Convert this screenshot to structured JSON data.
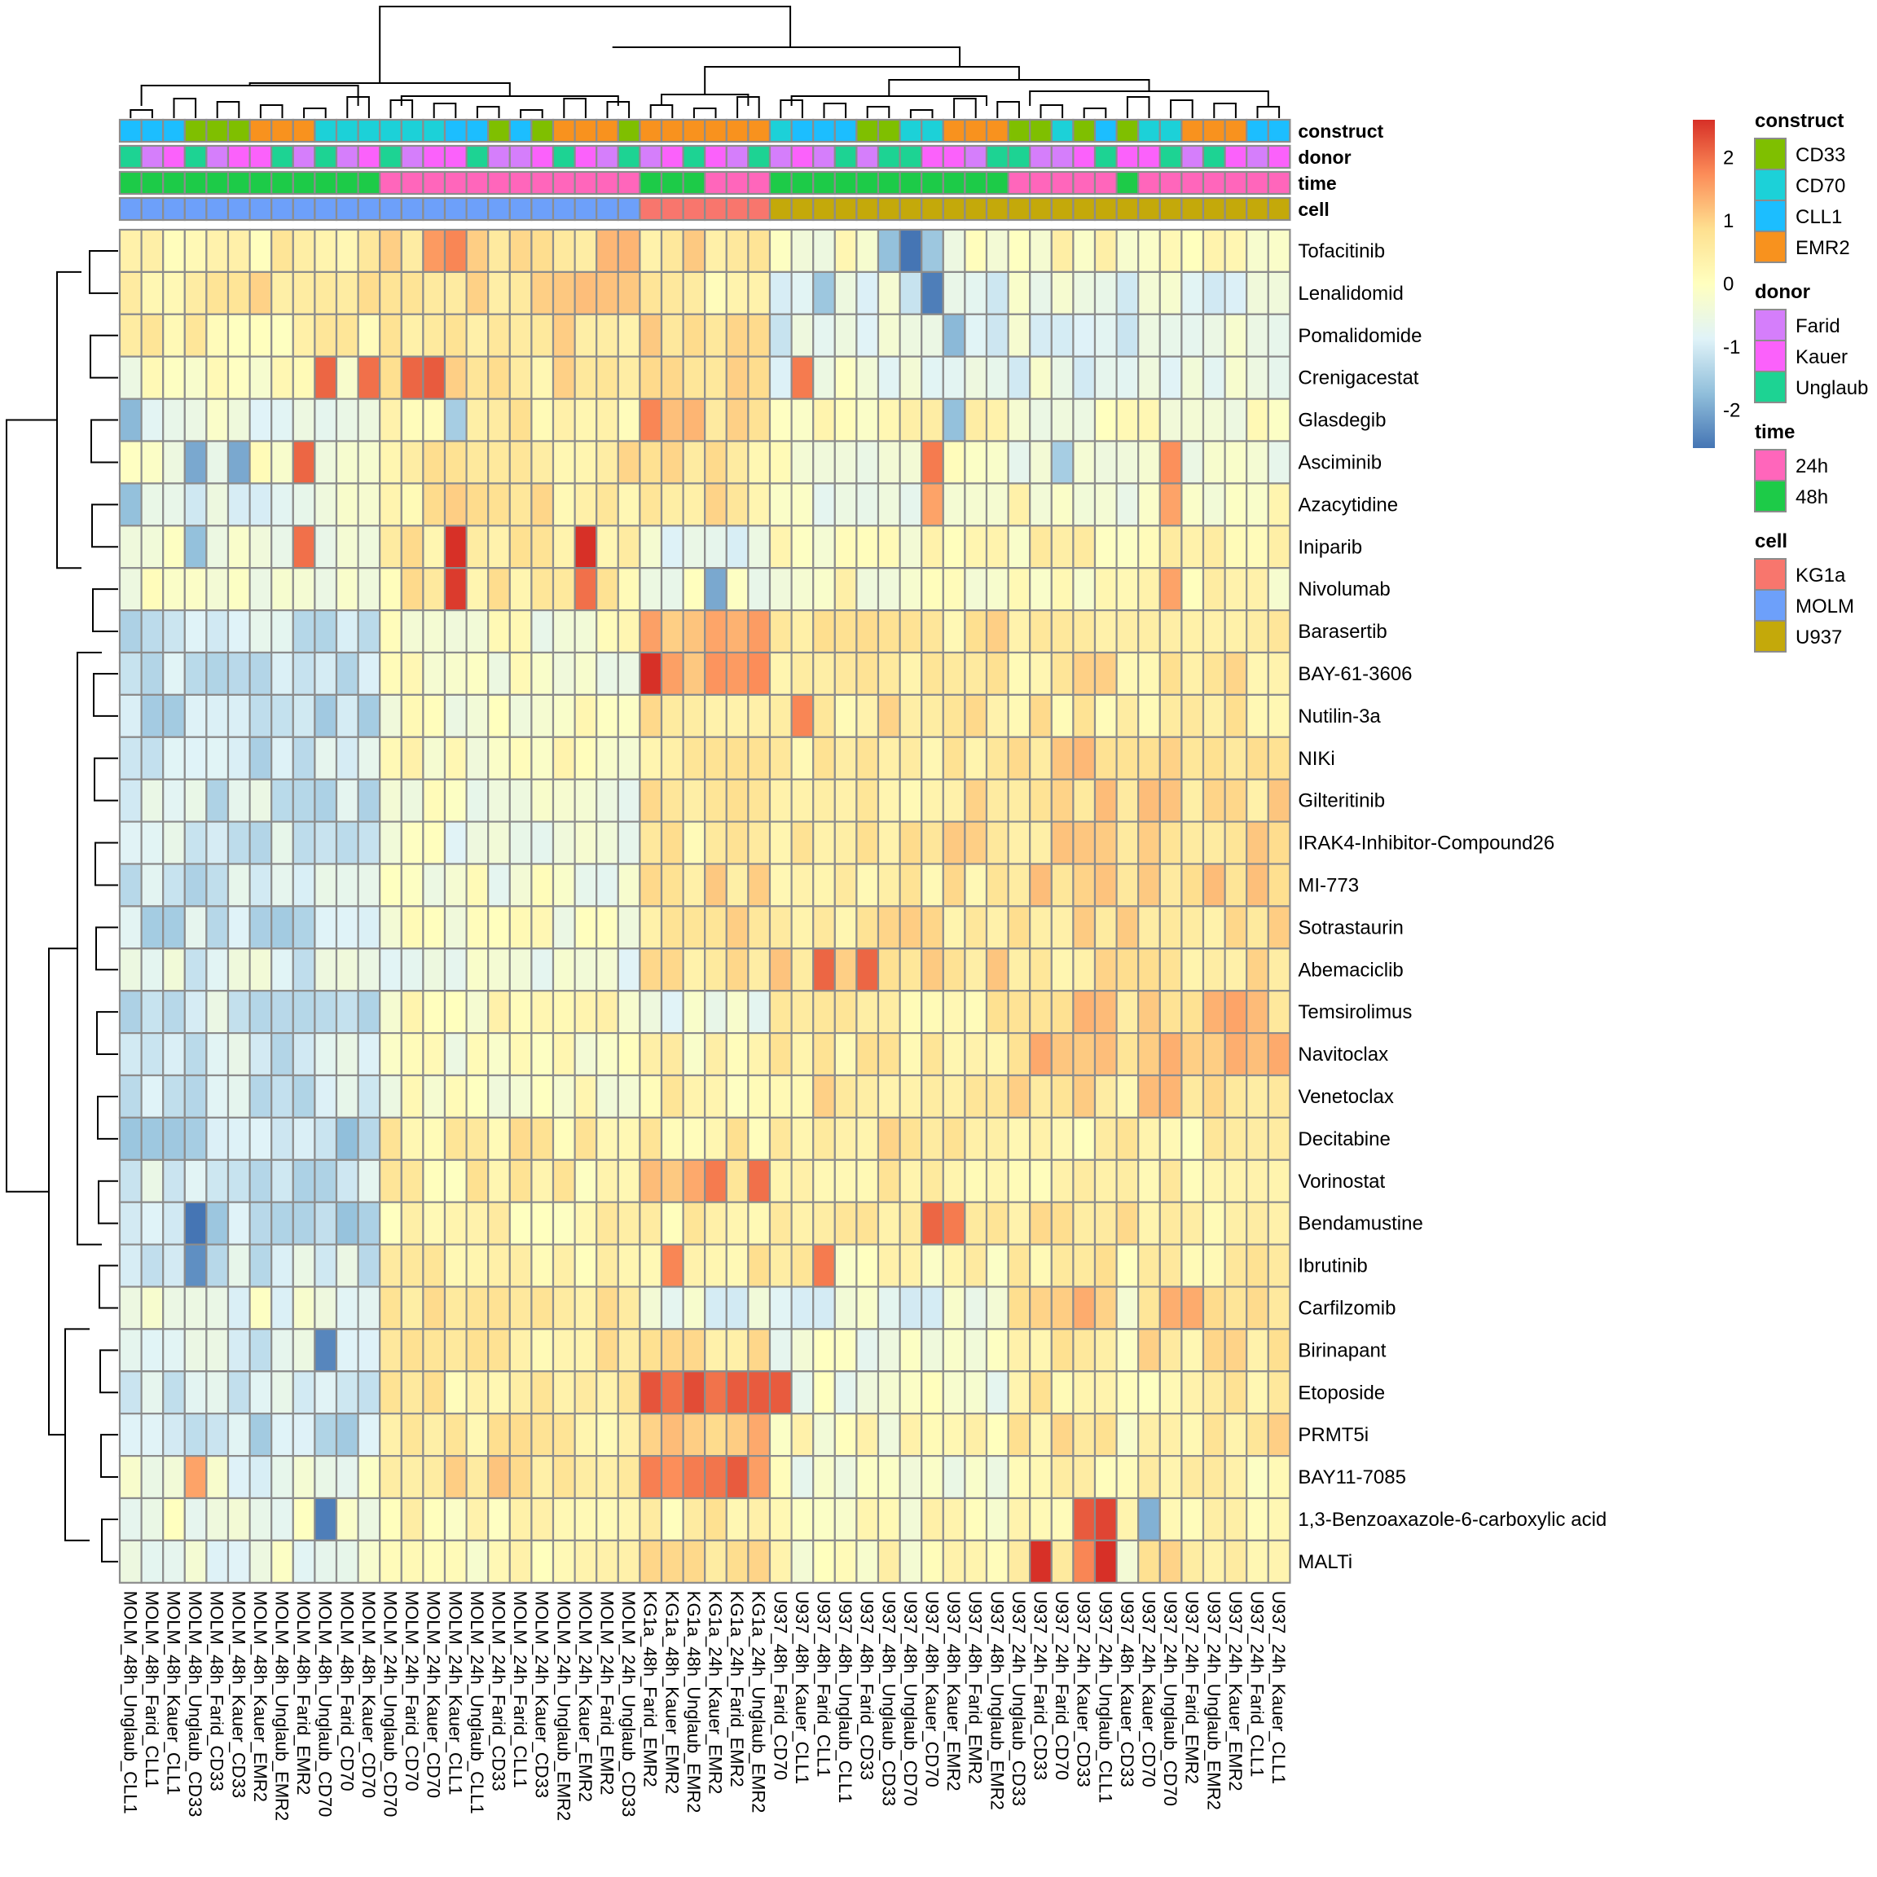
{
  "chart_data": {
    "type": "heatmap",
    "title": "",
    "color_scale": {
      "min": -2.6,
      "max": 2.6,
      "ticks": [
        "2",
        "1",
        "0",
        "-1",
        "-2"
      ],
      "tick_values": [
        2,
        1,
        0,
        -1,
        -2
      ],
      "palette": [
        "#4575B4",
        "#91BFDB",
        "#E0F3F8",
        "#FFFFBF",
        "#FEE090",
        "#FC8D59",
        "#D73027"
      ]
    },
    "rows": [
      "Tofacitinib",
      "Lenalidomid",
      "Pomalidomide",
      "Crenigacestat",
      "Glasdegib",
      "Asciminib",
      "Azacytidine",
      "Iniparib",
      "Nivolumab",
      "Barasertib",
      "BAY-61-3606",
      "Nutilin-3a",
      "NIKi",
      "Gilteritinib",
      "IRAK4-Inhibitor-Compound26",
      "MI-773",
      "Sotrastaurin",
      "Abemaciclib",
      "Temsirolimus",
      "Navitoclax",
      "Venetoclax",
      "Decitabine",
      "Vorinostat",
      "Bendamustine",
      "Ibrutinib",
      "Carfilzomib",
      "Birinapant",
      "Etoposide",
      "PRMT5i",
      "BAY11-7085",
      "1,3-Benzoaxazole-6-carboxylic acid",
      "MALTi"
    ],
    "columns": [
      "MOLM_48h_Unglaub_CLL1",
      "MOLM_48h_Farid_CLL1",
      "MOLM_48h_Kauer_CLL1",
      "MOLM_48h_Unglaub_CD33",
      "MOLM_48h_Farid_CD33",
      "MOLM_48h_Kauer_CD33",
      "MOLM_48h_Kauer_EMR2",
      "MOLM_48h_Unglaub_EMR2",
      "MOLM_48h_Farid_EMR2",
      "MOLM_48h_Unglaub_CD70",
      "MOLM_48h_Farid_CD70",
      "MOLM_48h_Kauer_CD70",
      "MOLM_24h_Unglaub_CD70",
      "MOLM_24h_Farid_CD70",
      "MOLM_24h_Kauer_CD70",
      "MOLM_24h_Kauer_CLL1",
      "MOLM_24h_Unglaub_CLL1",
      "MOLM_24h_Farid_CD33",
      "MOLM_24h_Farid_CLL1",
      "MOLM_24h_Kauer_CD33",
      "MOLM_24h_Unglaub_EMR2",
      "MOLM_24h_Kauer_EMR2",
      "MOLM_24h_Farid_EMR2",
      "MOLM_24h_Unglaub_CD33",
      "KG1a_48h_Farid_EMR2",
      "KG1a_48h_Kauer_EMR2",
      "KG1a_48h_Unglaub_EMR2",
      "KG1a_24h_Kauer_EMR2",
      "KG1a_24h_Farid_EMR2",
      "KG1a_24h_Unglaub_EMR2",
      "U937_48h_Farid_CD70",
      "U937_48h_Kauer_CLL1",
      "U937_48h_Farid_CLL1",
      "U937_48h_Unglaub_CLL1",
      "U937_48h_Farid_CD33",
      "U937_48h_Unglaub_CD33",
      "U937_48h_Unglaub_CD70",
      "U937_48h_Kauer_CD70",
      "U937_48h_Kauer_EMR2",
      "U937_48h_Farid_EMR2",
      "U937_48h_Unglaub_EMR2",
      "U937_24h_Unglaub_CD33",
      "U937_24h_Farid_CD33",
      "U937_24h_Farid_CD70",
      "U937_24h_Kauer_CD33",
      "U937_24h_Unglaub_CLL1",
      "U937_48h_Kauer_CD33",
      "U937_24h_Kauer_CD70",
      "U937_24h_Unglaub_CD70",
      "U937_24h_Farid_EMR2",
      "U937_24h_Unglaub_EMR2",
      "U937_24h_Kauer_EMR2",
      "U937_24h_Farid_CLL1",
      "U937_24h_Kauer_CLL1"
    ],
    "annotations": {
      "order": [
        "construct",
        "donor",
        "time",
        "cell"
      ],
      "construct": [
        "CLL1",
        "CLL1",
        "CLL1",
        "CD33",
        "CD33",
        "CD33",
        "EMR2",
        "EMR2",
        "EMR2",
        "CD70",
        "CD70",
        "CD70",
        "CD70",
        "CD70",
        "CD70",
        "CLL1",
        "CLL1",
        "CD33",
        "CLL1",
        "CD33",
        "EMR2",
        "EMR2",
        "EMR2",
        "CD33",
        "EMR2",
        "EMR2",
        "EMR2",
        "EMR2",
        "EMR2",
        "EMR2",
        "CD70",
        "CLL1",
        "CLL1",
        "CLL1",
        "CD33",
        "CD33",
        "CD70",
        "CD70",
        "EMR2",
        "EMR2",
        "EMR2",
        "CD33",
        "CD33",
        "CD70",
        "CD33",
        "CLL1",
        "CD33",
        "CD70",
        "CD70",
        "EMR2",
        "EMR2",
        "EMR2",
        "CLL1",
        "CLL1"
      ],
      "donor": [
        "Unglaub",
        "Farid",
        "Kauer",
        "Unglaub",
        "Farid",
        "Kauer",
        "Kauer",
        "Unglaub",
        "Farid",
        "Unglaub",
        "Farid",
        "Kauer",
        "Unglaub",
        "Farid",
        "Kauer",
        "Kauer",
        "Unglaub",
        "Farid",
        "Farid",
        "Kauer",
        "Unglaub",
        "Kauer",
        "Farid",
        "Unglaub",
        "Farid",
        "Kauer",
        "Unglaub",
        "Kauer",
        "Farid",
        "Unglaub",
        "Farid",
        "Kauer",
        "Farid",
        "Unglaub",
        "Farid",
        "Unglaub",
        "Unglaub",
        "Kauer",
        "Kauer",
        "Farid",
        "Unglaub",
        "Unglaub",
        "Farid",
        "Farid",
        "Kauer",
        "Unglaub",
        "Kauer",
        "Kauer",
        "Unglaub",
        "Farid",
        "Unglaub",
        "Kauer",
        "Farid",
        "Kauer"
      ],
      "time": [
        "48h",
        "48h",
        "48h",
        "48h",
        "48h",
        "48h",
        "48h",
        "48h",
        "48h",
        "48h",
        "48h",
        "48h",
        "24h",
        "24h",
        "24h",
        "24h",
        "24h",
        "24h",
        "24h",
        "24h",
        "24h",
        "24h",
        "24h",
        "24h",
        "48h",
        "48h",
        "48h",
        "24h",
        "24h",
        "24h",
        "48h",
        "48h",
        "48h",
        "48h",
        "48h",
        "48h",
        "48h",
        "48h",
        "48h",
        "48h",
        "48h",
        "24h",
        "24h",
        "24h",
        "24h",
        "24h",
        "48h",
        "24h",
        "24h",
        "24h",
        "24h",
        "24h",
        "24h",
        "24h"
      ],
      "cell": [
        "MOLM",
        "MOLM",
        "MOLM",
        "MOLM",
        "MOLM",
        "MOLM",
        "MOLM",
        "MOLM",
        "MOLM",
        "MOLM",
        "MOLM",
        "MOLM",
        "MOLM",
        "MOLM",
        "MOLM",
        "MOLM",
        "MOLM",
        "MOLM",
        "MOLM",
        "MOLM",
        "MOLM",
        "MOLM",
        "MOLM",
        "MOLM",
        "KG1a",
        "KG1a",
        "KG1a",
        "KG1a",
        "KG1a",
        "KG1a",
        "U937",
        "U937",
        "U937",
        "U937",
        "U937",
        "U937",
        "U937",
        "U937",
        "U937",
        "U937",
        "U937",
        "U937",
        "U937",
        "U937",
        "U937",
        "U937",
        "U937",
        "U937",
        "U937",
        "U937",
        "U937",
        "U937",
        "U937",
        "U937"
      ]
    },
    "legend": {
      "placement": "right",
      "groups": [
        {
          "title": "construct",
          "items": [
            {
              "label": "CD33",
              "color": "#7FBF00"
            },
            {
              "label": "CD70",
              "color": "#1CD1D8"
            },
            {
              "label": "CLL1",
              "color": "#1CBEFF"
            },
            {
              "label": "EMR2",
              "color": "#F8921E"
            }
          ]
        },
        {
          "title": "donor",
          "items": [
            {
              "label": "Farid",
              "color": "#D57EFB"
            },
            {
              "label": "Kauer",
              "color": "#FB61FB"
            },
            {
              "label": "Unglaub",
              "color": "#1DD393"
            }
          ]
        },
        {
          "title": "time",
          "items": [
            {
              "label": "24h",
              "color": "#FF66BB"
            },
            {
              "label": "48h",
              "color": "#1DCB48"
            }
          ]
        },
        {
          "title": "cell",
          "items": [
            {
              "label": "KG1a",
              "color": "#F8766D"
            },
            {
              "label": "MOLM",
              "color": "#6DA0FA"
            },
            {
              "label": "U937",
              "color": "#C4A90A"
            }
          ]
        }
      ]
    },
    "values_note": "values estimated from cell colors",
    "values": []
  }
}
